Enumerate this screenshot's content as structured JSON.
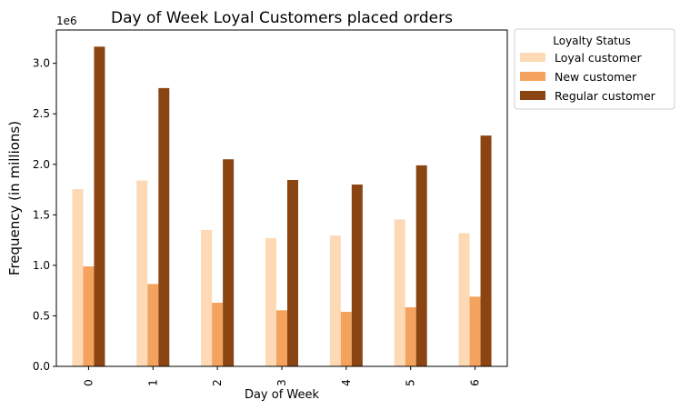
{
  "chart_data": {
    "type": "bar",
    "title": "Day of Week Loyal Customers placed orders",
    "xlabel": "Day of Week",
    "ylabel": "Frequency (in millions)",
    "y_offset_label": "1e6",
    "y_scale": 1000000,
    "ylim": [
      0,
      3330000
    ],
    "yticks": [
      0,
      500000,
      1000000,
      1500000,
      2000000,
      2500000,
      3000000
    ],
    "ytick_labels": [
      "0.0",
      "0.5",
      "1.0",
      "1.5",
      "2.0",
      "2.5",
      "3.0"
    ],
    "categories": [
      "0",
      "1",
      "2",
      "3",
      "4",
      "5",
      "6"
    ],
    "grid": false,
    "legend": {
      "title": "Loyalty Status",
      "placement": "outside upper right"
    },
    "series": [
      {
        "name": "Loyal customer",
        "color": "#fdd9b5",
        "values": [
          1755000,
          1840000,
          1350000,
          1270000,
          1295000,
          1455000,
          1320000
        ]
      },
      {
        "name": "New customer",
        "color": "#f3a35d",
        "values": [
          990000,
          815000,
          630000,
          555000,
          540000,
          585000,
          690000
        ]
      },
      {
        "name": "Regular customer",
        "color": "#8b4513",
        "values": [
          3165000,
          2755000,
          2050000,
          1845000,
          1800000,
          1990000,
          2285000
        ]
      }
    ]
  }
}
